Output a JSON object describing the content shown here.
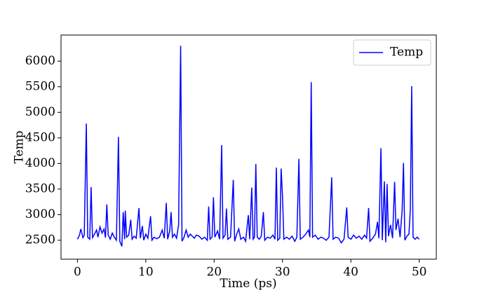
{
  "chart_data": {
    "type": "line",
    "xlabel": "Time (ps)",
    "ylabel": "Temp",
    "x": [
      0.0,
      0.3,
      0.5,
      0.8,
      1.0,
      1.3,
      1.5,
      1.8,
      2.0,
      2.2,
      2.5,
      2.8,
      3.0,
      3.3,
      3.6,
      3.9,
      4.1,
      4.3,
      4.5,
      4.8,
      5.1,
      5.4,
      5.7,
      6.0,
      6.2,
      6.5,
      6.7,
      6.9,
      7.0,
      7.2,
      7.5,
      7.8,
      8.0,
      8.3,
      8.6,
      9.0,
      9.2,
      9.5,
      9.7,
      10.0,
      10.3,
      10.7,
      10.9,
      11.2,
      11.6,
      12.0,
      12.4,
      12.7,
      13.0,
      13.2,
      13.5,
      13.7,
      13.9,
      14.2,
      14.5,
      14.8,
      15.1,
      15.3,
      15.6,
      15.9,
      16.2,
      16.5,
      16.8,
      17.1,
      17.4,
      17.8,
      18.2,
      18.6,
      19.0,
      19.2,
      19.4,
      19.7,
      19.9,
      20.1,
      20.5,
      20.8,
      21.1,
      21.3,
      21.6,
      21.8,
      22.0,
      22.4,
      22.8,
      23.0,
      23.3,
      23.6,
      23.9,
      24.3,
      24.6,
      25.0,
      25.2,
      25.5,
      25.7,
      25.9,
      26.1,
      26.3,
      26.6,
      26.9,
      27.2,
      27.4,
      27.8,
      28.2,
      28.6,
      28.9,
      29.1,
      29.3,
      29.6,
      29.8,
      30.0,
      30.2,
      30.6,
      31.0,
      31.4,
      31.8,
      32.1,
      32.4,
      32.6,
      33.0,
      33.4,
      33.8,
      34.0,
      34.2,
      34.4,
      34.8,
      35.2,
      35.6,
      36.0,
      36.4,
      36.8,
      37.2,
      37.4,
      37.8,
      38.2,
      38.6,
      39.0,
      39.4,
      39.6,
      40.0,
      40.4,
      40.8,
      41.2,
      41.6,
      42.0,
      42.3,
      42.6,
      42.8,
      43.2,
      43.6,
      43.9,
      44.1,
      44.4,
      44.6,
      44.9,
      45.1,
      45.3,
      45.5,
      45.8,
      46.1,
      46.4,
      46.6,
      46.9,
      47.2,
      47.5,
      47.7,
      47.9,
      48.2,
      48.5,
      48.7,
      48.9,
      49.1,
      49.4,
      49.7,
      50.0
    ],
    "series": [
      {
        "name": "Temp",
        "color": "#0000ff",
        "values": [
          2520,
          2600,
          2720,
          2550,
          2600,
          4780,
          2560,
          2520,
          3540,
          2550,
          2620,
          2700,
          2560,
          2760,
          2640,
          2720,
          2550,
          3200,
          2600,
          2520,
          2640,
          2560,
          2500,
          4520,
          2480,
          2380,
          3050,
          2520,
          3080,
          2560,
          2600,
          2900,
          2520,
          2580,
          2540,
          3130,
          2540,
          2780,
          2500,
          2620,
          2540,
          2970,
          2500,
          2560,
          2530,
          2560,
          2700,
          2540,
          3230,
          2520,
          2680,
          3050,
          2560,
          2620,
          2540,
          2800,
          6300,
          2480,
          2560,
          2700,
          2560,
          2620,
          2580,
          2540,
          2600,
          2580,
          2520,
          2560,
          2500,
          3160,
          2520,
          2560,
          3340,
          2560,
          2680,
          2520,
          4360,
          2540,
          2600,
          3120,
          2520,
          2560,
          3680,
          2480,
          2620,
          2720,
          2520,
          2560,
          2480,
          2990,
          2520,
          3530,
          2520,
          2560,
          3990,
          2560,
          2520,
          2580,
          3050,
          2500,
          2560,
          2540,
          2600,
          2520,
          3920,
          2500,
          2540,
          3900,
          3360,
          2520,
          2560,
          2520,
          2580,
          2480,
          2560,
          4090,
          2520,
          2560,
          2620,
          2700,
          2560,
          5590,
          2560,
          2600,
          2520,
          2560,
          2540,
          2500,
          2560,
          3730,
          2520,
          2560,
          2540,
          2450,
          2520,
          3140,
          2560,
          2520,
          2600,
          2540,
          2580,
          2520,
          2600,
          2540,
          3130,
          2480,
          2540,
          2620,
          2860,
          2540,
          4300,
          2500,
          3650,
          2460,
          3600,
          2580,
          2800,
          2540,
          3640,
          2700,
          2920,
          2560,
          3080,
          4010,
          2500,
          2580,
          2620,
          3100,
          5510,
          2560,
          2520,
          2560,
          2520
        ]
      }
    ],
    "xlim": [
      -2.4,
      52.5
    ],
    "ylim": [
      2130,
      6510
    ],
    "xticks": [
      0,
      10,
      20,
      30,
      40,
      50
    ],
    "yticks": [
      2500,
      3000,
      3500,
      4000,
      4500,
      5000,
      5500,
      6000
    ],
    "legend": "upper right"
  }
}
